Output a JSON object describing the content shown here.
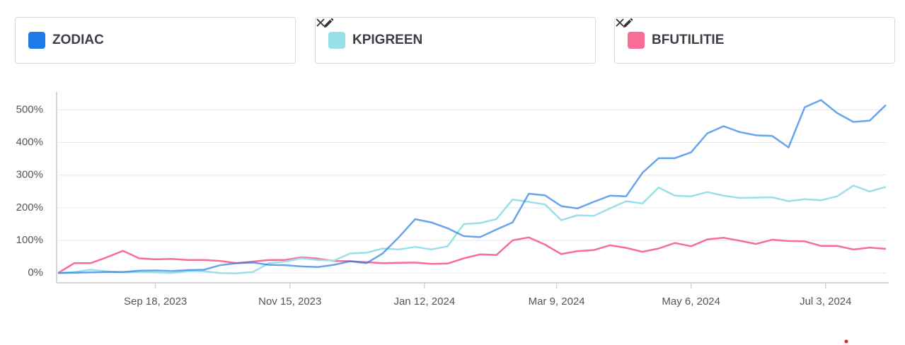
{
  "chart_data": {
    "type": "line",
    "x": [
      "2023-08-07",
      "2023-08-14",
      "2023-08-21",
      "2023-08-28",
      "2023-09-04",
      "2023-09-11",
      "2023-09-18",
      "2023-09-25",
      "2023-10-02",
      "2023-10-09",
      "2023-10-16",
      "2023-10-23",
      "2023-10-30",
      "2023-11-06",
      "2023-11-13",
      "2023-11-20",
      "2023-11-27",
      "2023-12-04",
      "2023-12-11",
      "2023-12-18",
      "2023-12-25",
      "2024-01-01",
      "2024-01-08",
      "2024-01-15",
      "2024-01-22",
      "2024-01-29",
      "2024-02-05",
      "2024-02-12",
      "2024-02-19",
      "2024-02-26",
      "2024-03-04",
      "2024-03-11",
      "2024-03-18",
      "2024-03-25",
      "2024-04-01",
      "2024-04-08",
      "2024-04-15",
      "2024-04-22",
      "2024-04-29",
      "2024-05-06",
      "2024-05-13",
      "2024-05-20",
      "2024-05-27",
      "2024-06-03",
      "2024-06-10",
      "2024-06-17",
      "2024-06-24",
      "2024-07-01",
      "2024-07-08",
      "2024-07-15",
      "2024-07-22",
      "2024-07-29"
    ],
    "series": [
      {
        "name": "ZODIAC",
        "color": "#1e7ae6",
        "values": [
          0,
          1,
          2,
          3,
          3,
          7,
          8,
          6,
          9,
          10,
          24,
          30,
          32,
          25,
          24,
          20,
          18,
          25,
          36,
          30,
          60,
          110,
          165,
          155,
          137,
          113,
          110,
          133,
          155,
          243,
          238,
          205,
          198,
          218,
          237,
          235,
          307,
          352,
          352,
          370,
          428,
          450,
          432,
          422,
          420,
          385,
          508,
          530,
          490,
          463,
          467,
          515
        ]
      },
      {
        "name": "KPIGREEN",
        "color": "#9ae0ea",
        "values": [
          0,
          3,
          10,
          5,
          2,
          3,
          2,
          0,
          6,
          5,
          0,
          -1,
          3,
          30,
          35,
          45,
          40,
          38,
          60,
          62,
          75,
          72,
          80,
          72,
          82,
          150,
          153,
          165,
          225,
          218,
          210,
          162,
          177,
          175,
          198,
          220,
          213,
          262,
          237,
          235,
          248,
          237,
          230,
          231,
          232,
          220,
          226,
          223,
          235,
          268,
          250,
          264
        ]
      },
      {
        "name": "BFUTILITIE",
        "color": "#f76d95",
        "values": [
          0,
          30,
          30,
          48,
          68,
          45,
          42,
          43,
          40,
          40,
          37,
          30,
          35,
          40,
          40,
          48,
          44,
          37,
          36,
          33,
          30,
          31,
          32,
          28,
          29,
          45,
          57,
          55,
          100,
          109,
          87,
          58,
          67,
          70,
          85,
          77,
          65,
          75,
          92,
          82,
          103,
          108,
          99,
          89,
          102,
          98,
          97,
          83,
          83,
          72,
          78,
          74
        ]
      }
    ],
    "xlim": [
      "2023-08-07",
      "2024-07-29"
    ],
    "xticks": [
      {
        "value": "2023-09-18",
        "label": "Sep 18, 2023"
      },
      {
        "value": "2023-11-15",
        "label": "Nov 15, 2023"
      },
      {
        "value": "2024-01-12",
        "label": "Jan 12, 2024"
      },
      {
        "value": "2024-03-09",
        "label": "Mar 9, 2024"
      },
      {
        "value": "2024-05-06",
        "label": "May 6, 2024"
      },
      {
        "value": "2024-07-03",
        "label": "Jul 3, 2024"
      }
    ],
    "ylim": [
      -30,
      555
    ],
    "yticks": [
      {
        "value": 0,
        "label": "0%"
      },
      {
        "value": 100,
        "label": "100%"
      },
      {
        "value": 200,
        "label": "200%"
      },
      {
        "value": 300,
        "label": "300%"
      },
      {
        "value": 400,
        "label": "400%"
      },
      {
        "value": 500,
        "label": "500%"
      }
    ],
    "grid": true
  }
}
